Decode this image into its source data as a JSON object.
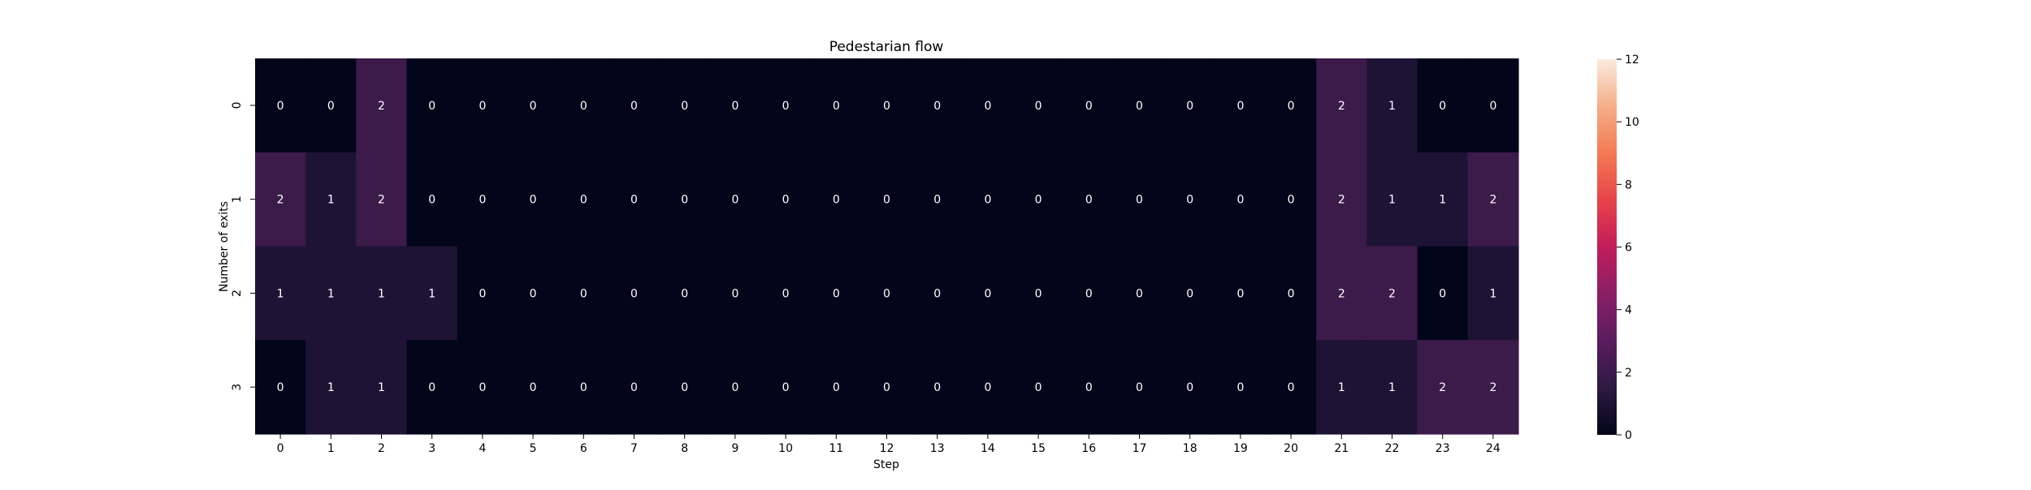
{
  "chart_data": {
    "type": "heatmap",
    "title": "Pedestarian flow",
    "xlabel": "Step",
    "ylabel": "Number of exits",
    "x_categories": [
      "0",
      "1",
      "2",
      "3",
      "4",
      "5",
      "6",
      "7",
      "8",
      "9",
      "10",
      "11",
      "12",
      "13",
      "14",
      "15",
      "16",
      "17",
      "18",
      "19",
      "20",
      "21",
      "22",
      "23",
      "24"
    ],
    "y_categories": [
      "0",
      "1",
      "2",
      "3"
    ],
    "values": [
      [
        0,
        0,
        2,
        0,
        0,
        0,
        0,
        0,
        0,
        0,
        0,
        0,
        0,
        0,
        0,
        0,
        0,
        0,
        0,
        0,
        0,
        2,
        1,
        0,
        0
      ],
      [
        2,
        1,
        2,
        0,
        0,
        0,
        0,
        0,
        0,
        0,
        0,
        0,
        0,
        0,
        0,
        0,
        0,
        0,
        0,
        0,
        0,
        2,
        1,
        1,
        2
      ],
      [
        1,
        1,
        1,
        1,
        0,
        0,
        0,
        0,
        0,
        0,
        0,
        0,
        0,
        0,
        0,
        0,
        0,
        0,
        0,
        0,
        0,
        2,
        2,
        0,
        1
      ],
      [
        0,
        1,
        1,
        0,
        0,
        0,
        0,
        0,
        0,
        0,
        0,
        0,
        0,
        0,
        0,
        0,
        0,
        0,
        0,
        0,
        0,
        1,
        1,
        2,
        2
      ]
    ],
    "colorbar": {
      "min": 0,
      "max": 12,
      "ticks": [
        "0",
        "2",
        "4",
        "6",
        "8",
        "10",
        "12"
      ]
    },
    "colormap": "rocket",
    "annotations": true,
    "grid": false
  }
}
